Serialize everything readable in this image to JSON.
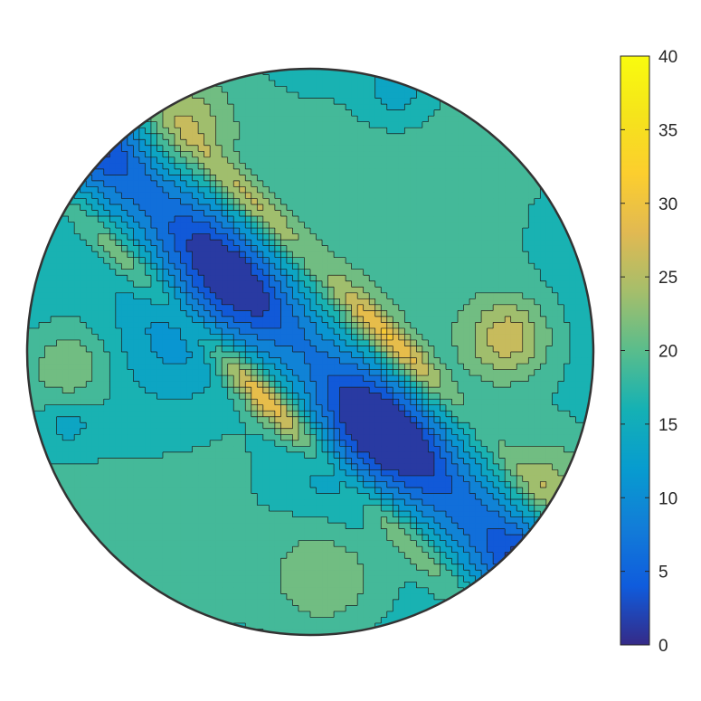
{
  "chart_data": {
    "type": "contour",
    "title": "",
    "xlabel": "",
    "ylabel": "",
    "shape": "circular-domain",
    "grid": false,
    "legend": "none",
    "colormap": "parula",
    "clim": [
      0,
      40
    ],
    "colorbar": {
      "location": "right",
      "ticks": [
        0,
        5,
        10,
        15,
        20,
        25,
        30,
        35,
        40
      ],
      "tick_labels": [
        "0",
        "5",
        "10",
        "15",
        "20",
        "25",
        "30",
        "35",
        "40"
      ]
    },
    "contour_levels": [
      0,
      2.5,
      5,
      7.5,
      10,
      12.5,
      15,
      17.5,
      20,
      22.5,
      25,
      27.5,
      30,
      32.5,
      35,
      37.5,
      40
    ],
    "field_features": [
      {
        "kind": "band",
        "description": "low valley along diagonal",
        "value_min": 2
      },
      {
        "kind": "ridge",
        "description": "high ridges flanking valley",
        "value_max": 33
      },
      {
        "kind": "plateau",
        "description": "background level",
        "value": 18
      }
    ]
  }
}
